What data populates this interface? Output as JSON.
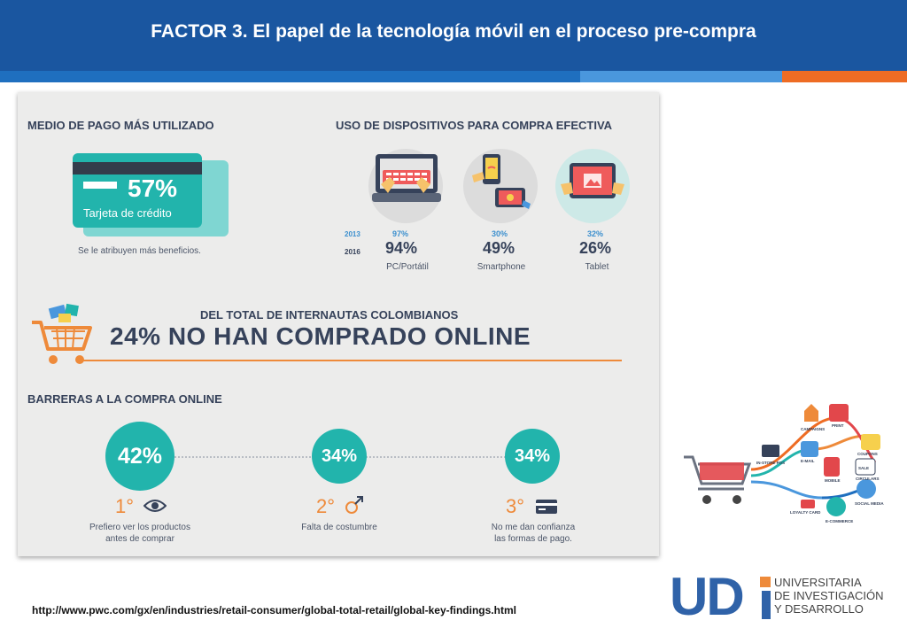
{
  "slide": {
    "title": "FACTOR  3. El papel de la tecnología móvil en el proceso pre-compra",
    "source_url": "http://www.pwc.com/gx/en/industries/retail-consumer/global-total-retail/global-key-findings.html"
  },
  "colors": {
    "header": "#1a56a0",
    "stripe_blue": "#1f6fbf",
    "stripe_light": "#4a97dd",
    "stripe_orange": "#ee6c24",
    "teal": "#22b4ac",
    "navy_text": "#36425a",
    "accent_orange": "#ee8a3a"
  },
  "payment": {
    "heading": "MEDIO DE PAGO MÁS UTILIZADO",
    "percent": "57%",
    "method": "Tarjeta de crédito",
    "note": "Se le atribuyen más beneficios.",
    "icon": "credit-card-icon"
  },
  "devices": {
    "heading": "USO DE DISPOSITIVOS PARA COMPRA EFECTIVA",
    "year_2013": "2013",
    "year_2016": "2016",
    "items": [
      {
        "label": "PC/Portátil",
        "value_2013": "97%",
        "value_2016": "94%",
        "icon": "laptop-icon"
      },
      {
        "label": "Smartphone",
        "value_2013": "30%",
        "value_2016": "49%",
        "icon": "smartphone-icon"
      },
      {
        "label": "Tablet",
        "value_2013": "32%",
        "value_2016": "26%",
        "icon": "tablet-icon"
      }
    ]
  },
  "internautas": {
    "subtitle": "DEL TOTAL DE INTERNAUTAS COLOMBIANOS",
    "headline": "24% NO HAN COMPRADO ONLINE",
    "icon": "shopping-cart-icon"
  },
  "barriers": {
    "heading": "BARRERAS A LA COMPRA ONLINE",
    "items": [
      {
        "percent": "42%",
        "rank": "1°",
        "icon": "eye-icon",
        "line1": "Prefiero ver los productos",
        "line2": "antes de comprar"
      },
      {
        "percent": "34%",
        "rank": "2°",
        "icon": "gender-icon",
        "line1": "Falta de costumbre",
        "line2": ""
      },
      {
        "percent": "34%",
        "rank": "3°",
        "icon": "card-icon",
        "line1": "No me dan confianza",
        "line2": "las formas de pago."
      }
    ]
  },
  "logo": {
    "mark": "UD",
    "line1": "UNIVERSITARIA",
    "line2": "DE INVESTIGACIÓN",
    "line3": "Y DESARROLLO"
  },
  "cart_illustration": {
    "labels": [
      "PRINT",
      "E-MAIL",
      "MOBILE",
      "SALE",
      "SOCIAL MEDIA",
      "E-COMMERCE",
      "LOYALTY CARD",
      "IN-STORE POS",
      "COUPONS",
      "CIRCULARS",
      "CAMPAIGNS"
    ]
  }
}
